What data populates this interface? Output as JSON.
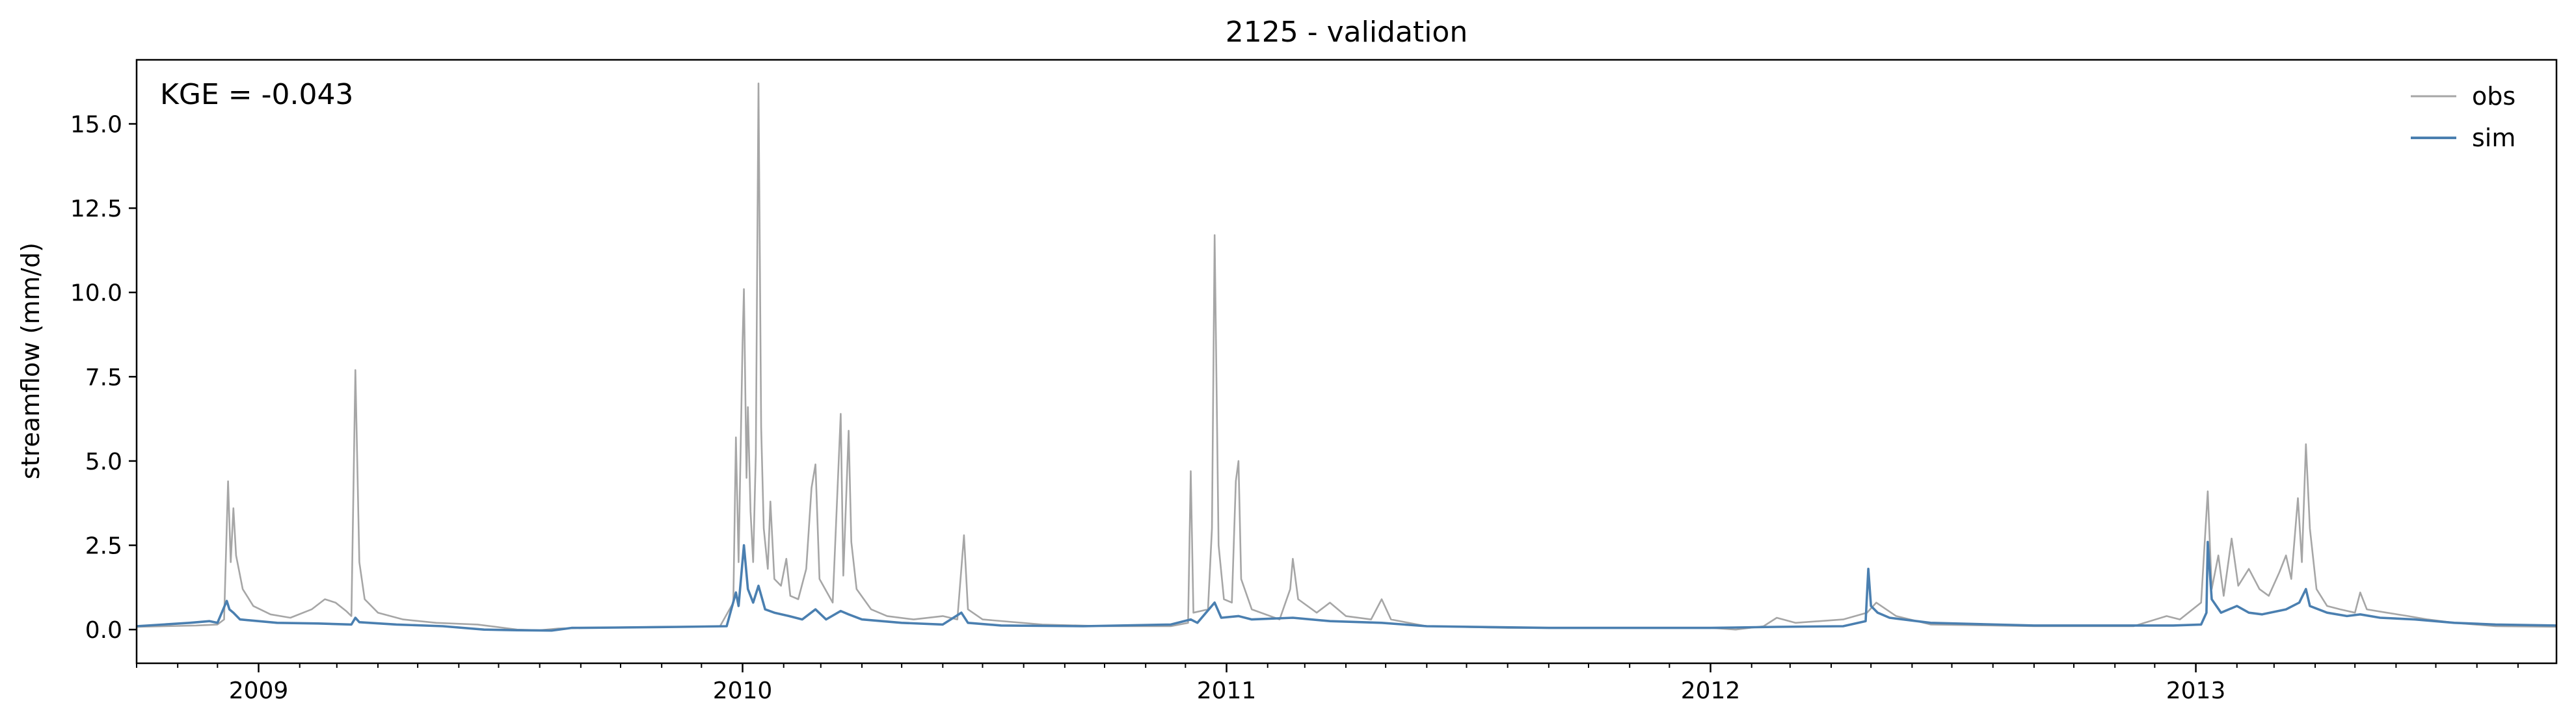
{
  "chart_data": {
    "type": "line",
    "title": "2125 - validation",
    "xlabel": "",
    "ylabel": "streamflow (mm/d)",
    "annotation": "KGE = -0.043",
    "legend_position": "top-right",
    "grid": false,
    "xlim": [
      "2008-10-01",
      "2013-09-30"
    ],
    "ylim": [
      -1.0,
      16.9
    ],
    "yticks": [
      0.0,
      2.5,
      5.0,
      7.5,
      10.0,
      12.5,
      15.0
    ],
    "ytick_labels": [
      "0.0",
      "2.5",
      "5.0",
      "7.5",
      "10.0",
      "12.5",
      "15.0"
    ],
    "xticks": [
      "2009-01-01",
      "2010-01-01",
      "2011-01-01",
      "2012-01-01",
      "2013-01-01"
    ],
    "xtick_labels": [
      "2009",
      "2010",
      "2011",
      "2012",
      "2013"
    ],
    "series": [
      {
        "name": "obs",
        "color": "#a6a6a6",
        "points": [
          [
            "2008-10-01",
            0.08
          ],
          [
            "2008-11-15",
            0.12
          ],
          [
            "2008-12-01",
            0.15
          ],
          [
            "2008-12-06",
            0.3
          ],
          [
            "2008-12-09",
            4.4
          ],
          [
            "2008-12-11",
            2.0
          ],
          [
            "2008-12-13",
            3.6
          ],
          [
            "2008-12-15",
            2.2
          ],
          [
            "2008-12-20",
            1.2
          ],
          [
            "2008-12-28",
            0.7
          ],
          [
            "2009-01-10",
            0.45
          ],
          [
            "2009-01-25",
            0.35
          ],
          [
            "2009-02-10",
            0.6
          ],
          [
            "2009-02-20",
            0.9
          ],
          [
            "2009-02-28",
            0.8
          ],
          [
            "2009-03-08",
            0.55
          ],
          [
            "2009-03-12",
            0.4
          ],
          [
            "2009-03-15",
            7.7
          ],
          [
            "2009-03-18",
            2.0
          ],
          [
            "2009-03-22",
            0.9
          ],
          [
            "2009-04-01",
            0.5
          ],
          [
            "2009-04-20",
            0.3
          ],
          [
            "2009-05-15",
            0.2
          ],
          [
            "2009-06-15",
            0.15
          ],
          [
            "2009-07-15",
            0.0
          ],
          [
            "2009-08-01",
            -0.02
          ],
          [
            "2009-08-15",
            0.03
          ],
          [
            "2009-09-15",
            0.06
          ],
          [
            "2009-11-01",
            0.08
          ],
          [
            "2009-12-15",
            0.1
          ],
          [
            "2009-12-25",
            0.8
          ],
          [
            "2009-12-27",
            5.7
          ],
          [
            "2009-12-29",
            2.0
          ],
          [
            "2010-01-01",
            8.5
          ],
          [
            "2010-01-02",
            10.1
          ],
          [
            "2010-01-04",
            4.5
          ],
          [
            "2010-01-05",
            6.6
          ],
          [
            "2010-01-07",
            3.5
          ],
          [
            "2010-01-09",
            2.0
          ],
          [
            "2010-01-11",
            5.2
          ],
          [
            "2010-01-13",
            16.2
          ],
          [
            "2010-01-15",
            6.0
          ],
          [
            "2010-01-17",
            3.0
          ],
          [
            "2010-01-20",
            1.8
          ],
          [
            "2010-01-22",
            3.8
          ],
          [
            "2010-01-25",
            1.5
          ],
          [
            "2010-01-30",
            1.3
          ],
          [
            "2010-02-03",
            2.1
          ],
          [
            "2010-02-06",
            1.0
          ],
          [
            "2010-02-12",
            0.9
          ],
          [
            "2010-02-18",
            1.8
          ],
          [
            "2010-02-22",
            4.2
          ],
          [
            "2010-02-25",
            4.9
          ],
          [
            "2010-02-28",
            1.5
          ],
          [
            "2010-03-10",
            0.8
          ],
          [
            "2010-03-16",
            6.4
          ],
          [
            "2010-03-18",
            1.6
          ],
          [
            "2010-03-22",
            5.9
          ],
          [
            "2010-03-24",
            2.6
          ],
          [
            "2010-03-28",
            1.2
          ],
          [
            "2010-04-08",
            0.6
          ],
          [
            "2010-04-20",
            0.4
          ],
          [
            "2010-05-10",
            0.3
          ],
          [
            "2010-06-01",
            0.4
          ],
          [
            "2010-06-12",
            0.3
          ],
          [
            "2010-06-17",
            2.8
          ],
          [
            "2010-06-20",
            0.6
          ],
          [
            "2010-07-01",
            0.3
          ],
          [
            "2010-08-15",
            0.15
          ],
          [
            "2010-10-01",
            0.1
          ],
          [
            "2010-11-20",
            0.1
          ],
          [
            "2010-12-03",
            0.2
          ],
          [
            "2010-12-05",
            4.7
          ],
          [
            "2010-12-07",
            0.5
          ],
          [
            "2010-12-18",
            0.6
          ],
          [
            "2010-12-21",
            3.0
          ],
          [
            "2010-12-23",
            11.7
          ],
          [
            "2010-12-26",
            2.5
          ],
          [
            "2010-12-30",
            0.9
          ],
          [
            "2011-01-05",
            0.8
          ],
          [
            "2011-01-08",
            4.4
          ],
          [
            "2011-01-10",
            5.0
          ],
          [
            "2011-01-12",
            1.5
          ],
          [
            "2011-01-20",
            0.6
          ],
          [
            "2011-02-10",
            0.3
          ],
          [
            "2011-02-18",
            1.2
          ],
          [
            "2011-02-20",
            2.1
          ],
          [
            "2011-02-24",
            0.9
          ],
          [
            "2011-03-10",
            0.5
          ],
          [
            "2011-03-20",
            0.8
          ],
          [
            "2011-04-01",
            0.4
          ],
          [
            "2011-04-20",
            0.3
          ],
          [
            "2011-04-28",
            0.9
          ],
          [
            "2011-05-05",
            0.3
          ],
          [
            "2011-06-01",
            0.1
          ],
          [
            "2011-08-01",
            0.05
          ],
          [
            "2011-10-01",
            0.05
          ],
          [
            "2012-01-01",
            0.05
          ],
          [
            "2012-01-20",
            0.0
          ],
          [
            "2012-02-10",
            0.1
          ],
          [
            "2012-02-20",
            0.35
          ],
          [
            "2012-03-05",
            0.2
          ],
          [
            "2012-04-10",
            0.3
          ],
          [
            "2012-04-28",
            0.5
          ],
          [
            "2012-05-05",
            0.8
          ],
          [
            "2012-05-20",
            0.4
          ],
          [
            "2012-06-15",
            0.15
          ],
          [
            "2012-09-01",
            0.1
          ],
          [
            "2012-11-15",
            0.1
          ],
          [
            "2012-12-10",
            0.4
          ],
          [
            "2012-12-20",
            0.3
          ],
          [
            "2013-01-05",
            0.8
          ],
          [
            "2013-01-10",
            4.1
          ],
          [
            "2013-01-13",
            1.2
          ],
          [
            "2013-01-18",
            2.2
          ],
          [
            "2013-01-22",
            1.0
          ],
          [
            "2013-01-28",
            2.7
          ],
          [
            "2013-02-02",
            1.3
          ],
          [
            "2013-02-10",
            1.8
          ],
          [
            "2013-02-18",
            1.2
          ],
          [
            "2013-02-25",
            1.0
          ],
          [
            "2013-03-05",
            1.7
          ],
          [
            "2013-03-10",
            2.2
          ],
          [
            "2013-03-14",
            1.5
          ],
          [
            "2013-03-19",
            3.9
          ],
          [
            "2013-03-22",
            2.0
          ],
          [
            "2013-03-25",
            5.5
          ],
          [
            "2013-03-28",
            3.0
          ],
          [
            "2013-04-02",
            1.2
          ],
          [
            "2013-04-10",
            0.7
          ],
          [
            "2013-04-20",
            0.6
          ],
          [
            "2013-05-01",
            0.5
          ],
          [
            "2013-05-05",
            1.1
          ],
          [
            "2013-05-10",
            0.6
          ],
          [
            "2013-05-25",
            0.5
          ],
          [
            "2013-06-10",
            0.4
          ],
          [
            "2013-06-25",
            0.3
          ],
          [
            "2013-07-15",
            0.2
          ],
          [
            "2013-08-15",
            0.1
          ],
          [
            "2013-09-30",
            0.08
          ]
        ]
      },
      {
        "name": "sim",
        "color": "#4a7fb0",
        "points": [
          [
            "2008-10-01",
            0.1
          ],
          [
            "2008-11-10",
            0.2
          ],
          [
            "2008-11-25",
            0.25
          ],
          [
            "2008-12-01",
            0.2
          ],
          [
            "2008-12-08",
            0.85
          ],
          [
            "2008-12-10",
            0.6
          ],
          [
            "2008-12-13",
            0.5
          ],
          [
            "2008-12-18",
            0.3
          ],
          [
            "2009-01-15",
            0.2
          ],
          [
            "2009-02-15",
            0.18
          ],
          [
            "2009-03-12",
            0.15
          ],
          [
            "2009-03-15",
            0.35
          ],
          [
            "2009-03-18",
            0.22
          ],
          [
            "2009-04-15",
            0.15
          ],
          [
            "2009-05-20",
            0.1
          ],
          [
            "2009-06-20",
            0.0
          ],
          [
            "2009-07-15",
            -0.02
          ],
          [
            "2009-08-10",
            -0.03
          ],
          [
            "2009-08-25",
            0.05
          ],
          [
            "2009-10-01",
            0.06
          ],
          [
            "2009-11-15",
            0.08
          ],
          [
            "2009-12-20",
            0.1
          ],
          [
            "2009-12-27",
            1.1
          ],
          [
            "2009-12-29",
            0.7
          ],
          [
            "2010-01-02",
            2.5
          ],
          [
            "2010-01-05",
            1.2
          ],
          [
            "2010-01-09",
            0.8
          ],
          [
            "2010-01-13",
            1.3
          ],
          [
            "2010-01-18",
            0.6
          ],
          [
            "2010-01-25",
            0.5
          ],
          [
            "2010-02-05",
            0.4
          ],
          [
            "2010-02-15",
            0.3
          ],
          [
            "2010-02-25",
            0.6
          ],
          [
            "2010-03-05",
            0.3
          ],
          [
            "2010-03-16",
            0.55
          ],
          [
            "2010-03-22",
            0.45
          ],
          [
            "2010-04-01",
            0.3
          ],
          [
            "2010-05-01",
            0.2
          ],
          [
            "2010-06-01",
            0.15
          ],
          [
            "2010-06-15",
            0.5
          ],
          [
            "2010-06-20",
            0.2
          ],
          [
            "2010-07-15",
            0.12
          ],
          [
            "2010-09-15",
            0.1
          ],
          [
            "2010-11-20",
            0.15
          ],
          [
            "2010-12-05",
            0.3
          ],
          [
            "2010-12-10",
            0.2
          ],
          [
            "2010-12-23",
            0.8
          ],
          [
            "2010-12-28",
            0.35
          ],
          [
            "2011-01-10",
            0.4
          ],
          [
            "2011-01-20",
            0.3
          ],
          [
            "2011-02-20",
            0.35
          ],
          [
            "2011-03-20",
            0.25
          ],
          [
            "2011-04-28",
            0.2
          ],
          [
            "2011-06-01",
            0.1
          ],
          [
            "2011-09-01",
            0.05
          ],
          [
            "2012-01-01",
            0.05
          ],
          [
            "2012-02-20",
            0.08
          ],
          [
            "2012-04-10",
            0.1
          ],
          [
            "2012-04-27",
            0.25
          ],
          [
            "2012-04-29",
            1.8
          ],
          [
            "2012-05-01",
            0.7
          ],
          [
            "2012-05-06",
            0.5
          ],
          [
            "2012-05-15",
            0.35
          ],
          [
            "2012-06-15",
            0.2
          ],
          [
            "2012-09-01",
            0.12
          ],
          [
            "2012-12-15",
            0.12
          ],
          [
            "2013-01-05",
            0.15
          ],
          [
            "2013-01-09",
            0.5
          ],
          [
            "2013-01-10",
            2.6
          ],
          [
            "2013-01-13",
            0.9
          ],
          [
            "2013-01-20",
            0.5
          ],
          [
            "2013-02-01",
            0.7
          ],
          [
            "2013-02-10",
            0.5
          ],
          [
            "2013-02-20",
            0.45
          ],
          [
            "2013-03-10",
            0.6
          ],
          [
            "2013-03-20",
            0.8
          ],
          [
            "2013-03-25",
            1.2
          ],
          [
            "2013-03-28",
            0.7
          ],
          [
            "2013-04-10",
            0.5
          ],
          [
            "2013-04-25",
            0.4
          ],
          [
            "2013-05-05",
            0.45
          ],
          [
            "2013-05-20",
            0.35
          ],
          [
            "2013-06-15",
            0.3
          ],
          [
            "2013-07-15",
            0.2
          ],
          [
            "2013-08-15",
            0.15
          ],
          [
            "2013-09-30",
            0.12
          ]
        ]
      }
    ]
  }
}
